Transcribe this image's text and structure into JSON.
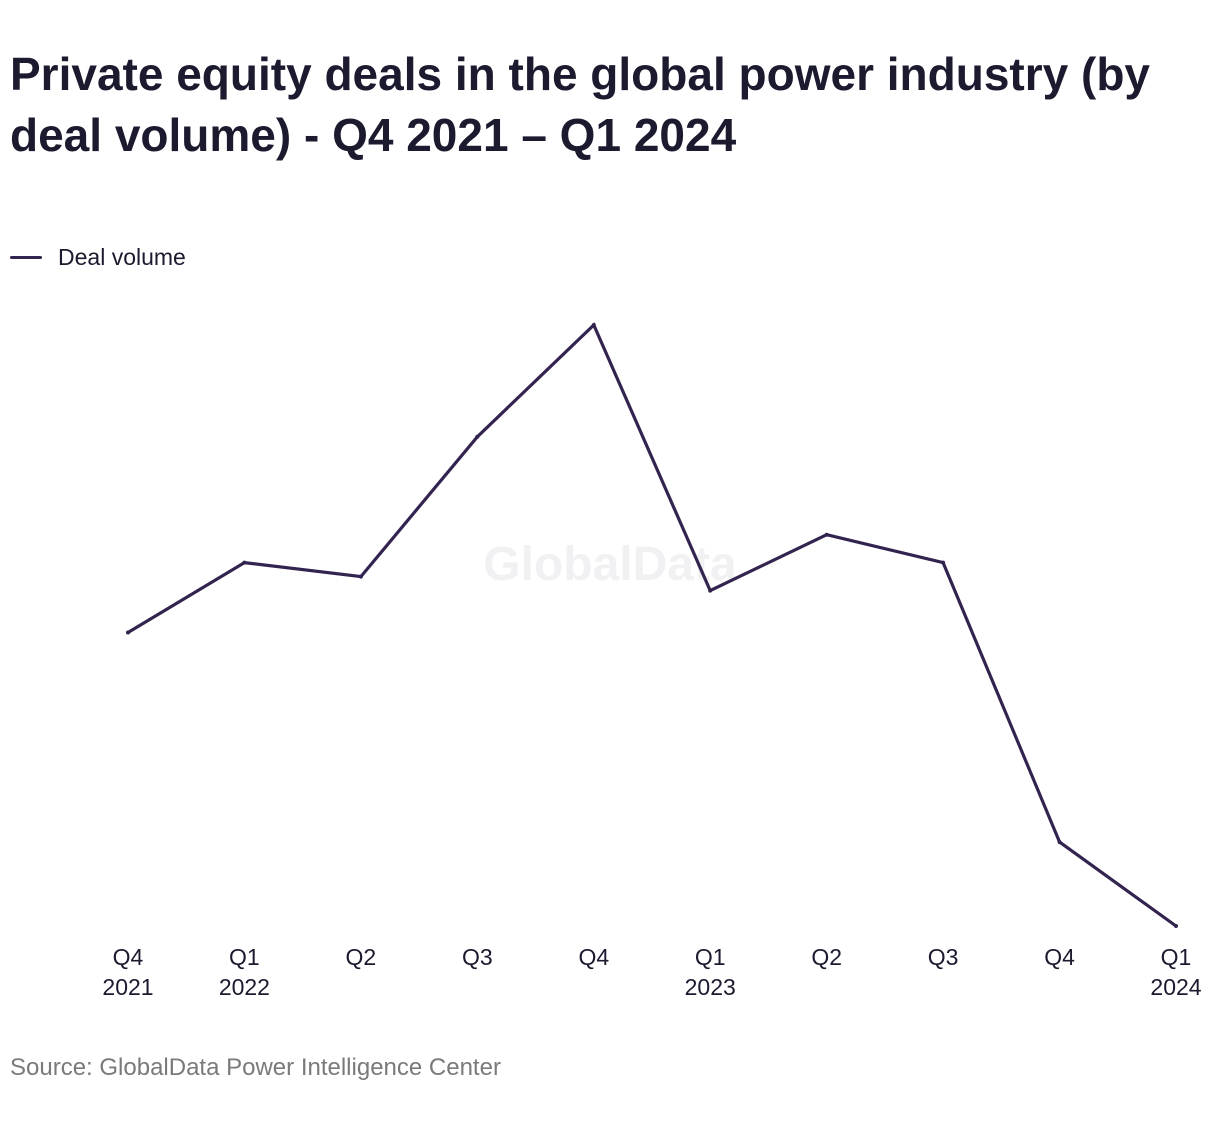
{
  "title": "Private equity deals in the global power industry (by deal volume) - Q4 2021 – Q1 2024",
  "watermark": "GlobalData",
  "source": "Source: GlobalData Power Intelligence Center",
  "colors": {
    "line": "#33234f",
    "text": "#1b1a2e",
    "source": "#7a7a7a"
  },
  "chart_data": {
    "type": "line",
    "title": "Private equity deals in the global power industry (by deal volume) - Q4 2021 – Q1 2024",
    "xlabel": "",
    "ylabel": "",
    "grid": false,
    "legend_position": "top-left",
    "y_axis_visible": false,
    "categories": [
      [
        "Q4",
        "2021"
      ],
      [
        "Q1",
        "2022"
      ],
      [
        "Q2"
      ],
      [
        "Q3"
      ],
      [
        "Q4"
      ],
      [
        "Q1",
        "2023"
      ],
      [
        "Q2"
      ],
      [
        "Q3"
      ],
      [
        "Q4"
      ],
      [
        "Q1",
        "2024"
      ]
    ],
    "ylim": [
      0,
      60
    ],
    "series": [
      {
        "name": "Deal volume",
        "color": "#33234f",
        "values": [
          21,
          26,
          25,
          35,
          43,
          24,
          28,
          26,
          6,
          0
        ]
      }
    ]
  }
}
